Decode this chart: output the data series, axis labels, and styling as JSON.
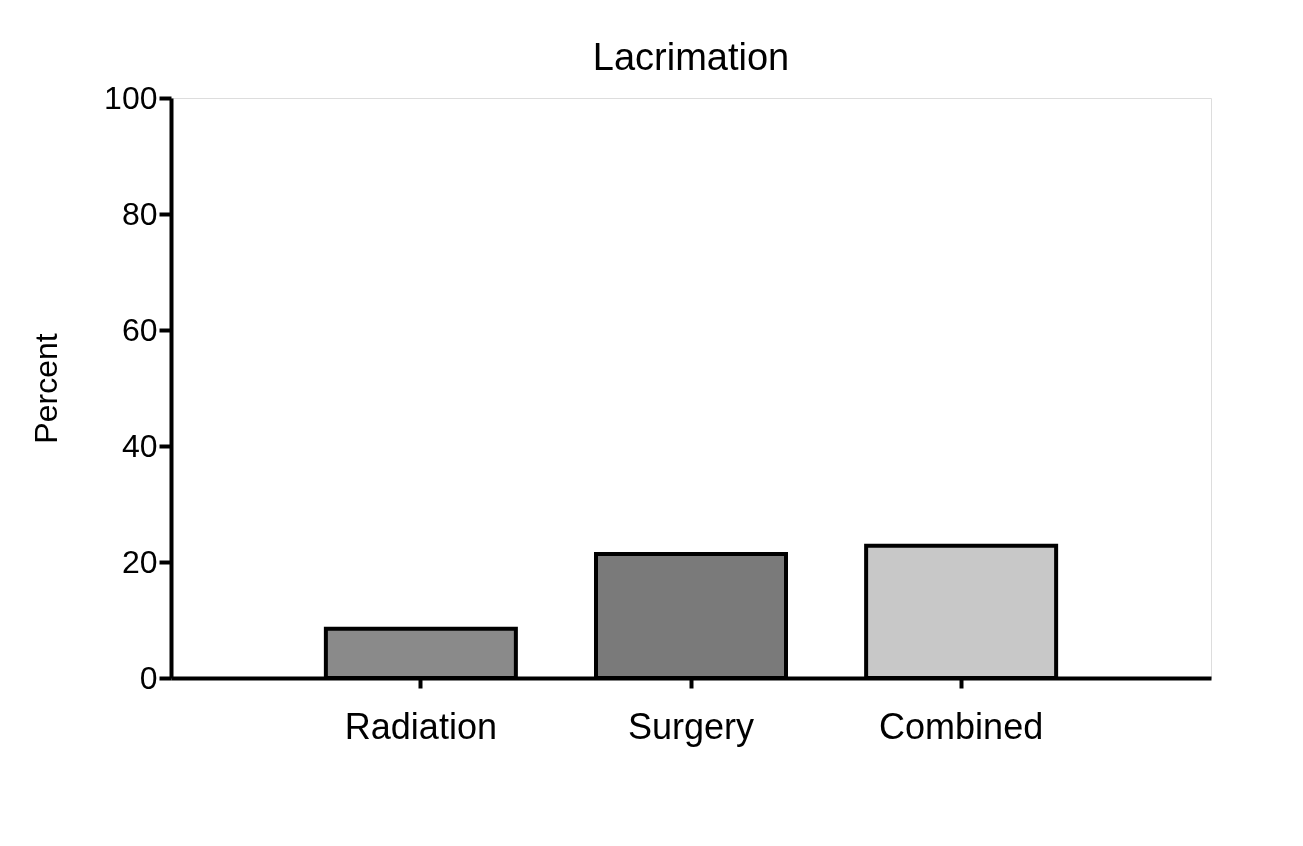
{
  "chart_data": {
    "type": "bar",
    "title": "Lacrimation",
    "ylabel": "Percent",
    "categories": [
      "Radiation",
      "Surgery",
      "Combined"
    ],
    "values": [
      8.5,
      21.4,
      22.8
    ],
    "colors": [
      "#8a8a8a",
      "#7a7a7a",
      "#c8c8c8"
    ],
    "ylim": [
      0,
      100
    ],
    "yticks": [
      0,
      20,
      40,
      60,
      80,
      100
    ],
    "grid": false,
    "legend": false
  }
}
